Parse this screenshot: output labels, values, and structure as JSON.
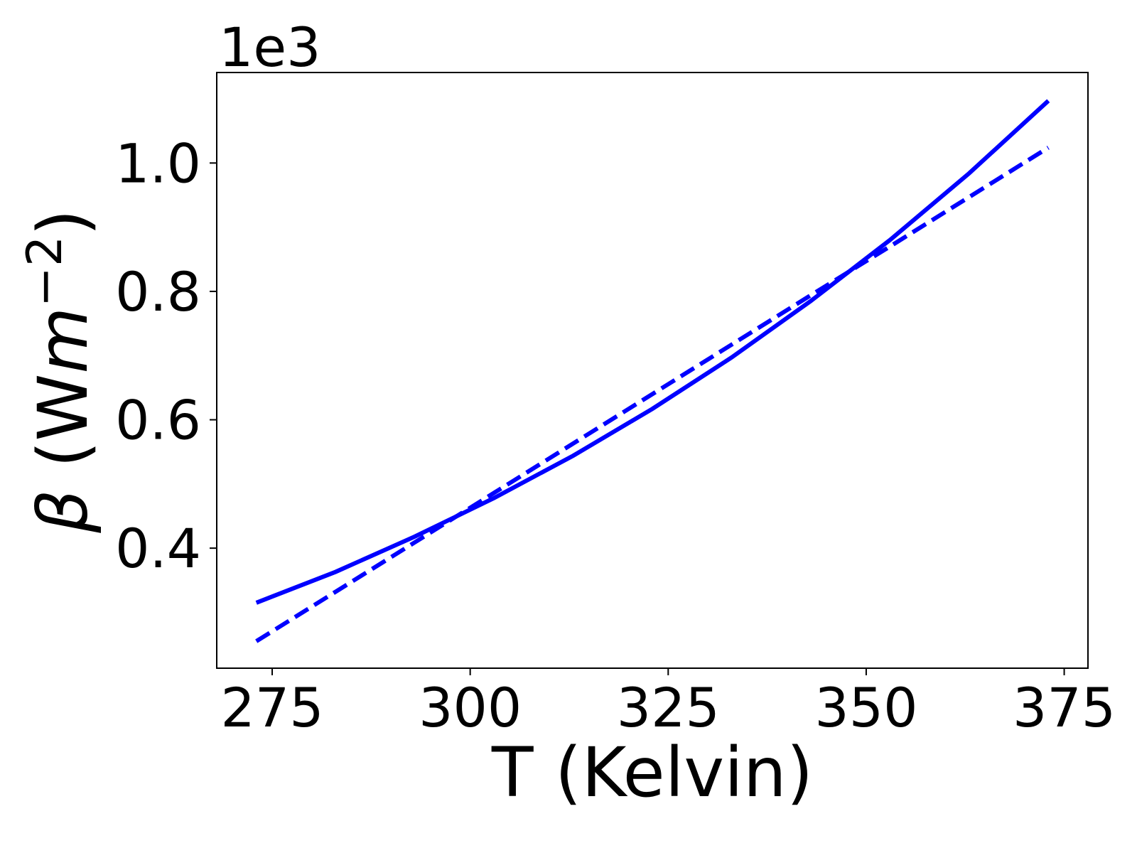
{
  "chart_data": {
    "type": "line",
    "offset_text": "1e3",
    "xlabel": "T (Kelvin)",
    "ylabel": {
      "symbol": "β",
      "open": " (W",
      "unit": "m",
      "sup": "−2",
      "close": ")"
    },
    "x": [
      273,
      283,
      293,
      303,
      313,
      323,
      333,
      343,
      353,
      363,
      373
    ],
    "series": [
      {
        "color": "#0000ff",
        "dashed": false,
        "values": [
          0.315,
          0.363,
          0.418,
          0.478,
          0.544,
          0.617,
          0.697,
          0.785,
          0.88,
          0.984,
          1.097
        ]
      },
      {
        "color": "#0000ff",
        "dashed": true,
        "values": [
          0.255,
          0.332,
          0.409,
          0.486,
          0.563,
          0.64,
          0.717,
          0.794,
          0.87,
          0.947,
          1.024
        ]
      }
    ],
    "xlim": [
      268,
      378
    ],
    "xticks": [
      275,
      300,
      325,
      350,
      375
    ],
    "ylim": [
      0.213,
      1.141
    ],
    "yticks": [
      0.4,
      0.6,
      0.8,
      {
        "value": 1,
        "label": "1.0"
      }
    ],
    "grid": false
  }
}
